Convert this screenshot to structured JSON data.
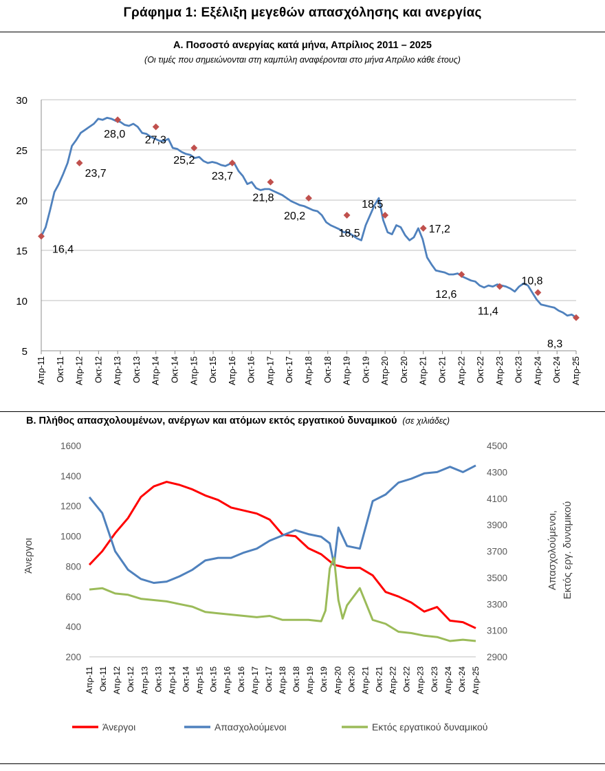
{
  "page": {
    "title": "Γράφημα 1: Εξέλιξη μεγεθών απασχόλησης και ανεργίας"
  },
  "chart_data": [
    {
      "id": "A",
      "type": "line",
      "title": "Α. Ποσοστό ανεργίας κατά μήνα, Απρίλιος 2011 – 2025",
      "subtitle": "(Οι τιμές που σημειώνονται στη καμπύλη αναφέρονται στο μήνα Απρίλιο κάθε έτους)",
      "xlabel": "",
      "ylabel": "",
      "ylim": [
        5,
        30
      ],
      "yticks": [
        5,
        10,
        15,
        20,
        25,
        30
      ],
      "grid": true,
      "x_tick_labels": [
        "Απρ-11",
        "Οκτ-11",
        "Απρ-12",
        "Οκτ-12",
        "Απρ-13",
        "Οκτ-13",
        "Απρ-14",
        "Οκτ-14",
        "Απρ-15",
        "Οκτ-15",
        "Απρ-16",
        "Οκτ-16",
        "Απρ-17",
        "Οκτ-17",
        "Απρ-18",
        "Οκτ-18",
        "Απρ-19",
        "Οκτ-19",
        "Απρ-20",
        "Οκτ-20",
        "Απρ-21",
        "Οκτ-21",
        "Απρ-22",
        "Οκτ-22",
        "Απρ-23",
        "Οκτ-23",
        "Απρ-24",
        "Οκτ-24",
        "Απρ-25"
      ],
      "series": [
        {
          "name": "Ποσοστό ανεργίας",
          "color": "#4f81bd",
          "points": [
            [
              0,
              16.4
            ],
            [
              0.5,
              17.3
            ],
            [
              1,
              19.0
            ],
            [
              1.5,
              20.8
            ],
            [
              2,
              21.6
            ],
            [
              2.5,
              22.6
            ],
            [
              3,
              23.7
            ],
            [
              3.5,
              25.4
            ],
            [
              4,
              26.0
            ],
            [
              4.5,
              26.7
            ],
            [
              5,
              27.0
            ],
            [
              5.5,
              27.3
            ],
            [
              6,
              27.6
            ],
            [
              6.5,
              28.1
            ],
            [
              7,
              28.0
            ],
            [
              7.5,
              28.2
            ],
            [
              8,
              28.1
            ],
            [
              8.5,
              27.9
            ],
            [
              9,
              27.8
            ],
            [
              9.5,
              27.5
            ],
            [
              10,
              27.4
            ],
            [
              10.5,
              27.6
            ],
            [
              11,
              27.3
            ],
            [
              11.5,
              26.7
            ],
            [
              12,
              26.6
            ],
            [
              12.5,
              26.3
            ],
            [
              13,
              26.1
            ],
            [
              13.5,
              25.9
            ],
            [
              14,
              25.9
            ],
            [
              14.5,
              26.1
            ],
            [
              15,
              25.2
            ],
            [
              15.5,
              25.1
            ],
            [
              16,
              24.8
            ],
            [
              16.5,
              24.6
            ],
            [
              17,
              24.5
            ],
            [
              17.5,
              24.2
            ],
            [
              18,
              24.3
            ],
            [
              18.5,
              23.9
            ],
            [
              19,
              23.7
            ],
            [
              19.5,
              23.8
            ],
            [
              20,
              23.7
            ],
            [
              20.5,
              23.5
            ],
            [
              21,
              23.4
            ],
            [
              21.5,
              23.6
            ],
            [
              22,
              23.7
            ],
            [
              22.5,
              22.9
            ],
            [
              23,
              22.4
            ],
            [
              23.5,
              21.6
            ],
            [
              24,
              21.8
            ],
            [
              24.5,
              21.2
            ],
            [
              25,
              21.0
            ],
            [
              25.5,
              21.1
            ],
            [
              26,
              21.1
            ],
            [
              26.5,
              20.9
            ],
            [
              27,
              20.7
            ],
            [
              27.5,
              20.5
            ],
            [
              28,
              20.2
            ],
            [
              28.5,
              19.9
            ],
            [
              29,
              19.7
            ],
            [
              29.5,
              19.5
            ],
            [
              30,
              19.4
            ],
            [
              30.5,
              19.2
            ],
            [
              31,
              19.0
            ],
            [
              31.5,
              18.9
            ],
            [
              32,
              18.5
            ],
            [
              32.5,
              17.8
            ],
            [
              33,
              17.5
            ],
            [
              33.5,
              17.3
            ],
            [
              34,
              17.1
            ],
            [
              34.5,
              16.8
            ],
            [
              35,
              16.8
            ],
            [
              35.5,
              16.5
            ],
            [
              36,
              16.2
            ],
            [
              36.5,
              16.0
            ],
            [
              37,
              17.5
            ],
            [
              37.5,
              18.5
            ],
            [
              38,
              19.5
            ],
            [
              38.5,
              20.2
            ],
            [
              39,
              18.0
            ],
            [
              39.5,
              16.8
            ],
            [
              40,
              16.6
            ],
            [
              40.5,
              17.5
            ],
            [
              41,
              17.3
            ],
            [
              41.5,
              16.5
            ],
            [
              42,
              16.0
            ],
            [
              42.5,
              16.3
            ],
            [
              43,
              17.2
            ],
            [
              43.5,
              16.1
            ],
            [
              44,
              14.3
            ],
            [
              44.5,
              13.6
            ],
            [
              45,
              13.0
            ],
            [
              45.5,
              12.9
            ],
            [
              46,
              12.8
            ],
            [
              46.5,
              12.6
            ],
            [
              47,
              12.6
            ],
            [
              47.5,
              12.7
            ],
            [
              48,
              12.4
            ],
            [
              48.5,
              12.2
            ],
            [
              49,
              12.0
            ],
            [
              49.5,
              11.9
            ],
            [
              50,
              11.5
            ],
            [
              50.5,
              11.3
            ],
            [
              51,
              11.5
            ],
            [
              51.5,
              11.4
            ],
            [
              52,
              11.6
            ],
            [
              52.5,
              11.5
            ],
            [
              53,
              11.4
            ],
            [
              53.5,
              11.2
            ],
            [
              54,
              10.9
            ],
            [
              54.5,
              11.4
            ],
            [
              55,
              11.7
            ],
            [
              55.5,
              11.5
            ],
            [
              56,
              10.8
            ],
            [
              56.5,
              10.1
            ],
            [
              57,
              9.6
            ],
            [
              57.5,
              9.5
            ],
            [
              58,
              9.4
            ],
            [
              58.5,
              9.3
            ],
            [
              59,
              9.0
            ],
            [
              59.5,
              8.8
            ],
            [
              60,
              8.5
            ],
            [
              60.5,
              8.6
            ],
            [
              61,
              8.3
            ]
          ]
        }
      ],
      "markers": {
        "color": "#c0504d",
        "points": [
          [
            0,
            16.4
          ],
          [
            6,
            23.7
          ],
          [
            12,
            28.0
          ],
          [
            18,
            27.3
          ],
          [
            24,
            25.2
          ],
          [
            30,
            23.7
          ],
          [
            36,
            21.8
          ],
          [
            42,
            20.2
          ],
          [
            48,
            18.5
          ],
          [
            54,
            18.5
          ],
          [
            60,
            17.2
          ],
          [
            66,
            12.6
          ],
          [
            72,
            11.4
          ],
          [
            78,
            10.8
          ],
          [
            84,
            8.3
          ]
        ]
      },
      "data_labels": [
        "16,4",
        "23,7",
        "28,0",
        "27,3",
        "25,2",
        "23,7",
        "21,8",
        "20,2",
        "18,5",
        "18,5",
        "17,2",
        "12,6",
        "11,4",
        "10,8",
        "8,3"
      ]
    },
    {
      "id": "B",
      "type": "line",
      "title": "Β. Πλήθος απασχολουμένων, ανέργων και ατόμων εκτός εργατικού δυναμικού",
      "unit_note": "(σε χιλιάδες)",
      "ylabel_left": "Άνεργοι",
      "ylabel_right_line1": "Απασχολούμενοι,",
      "ylabel_right_line2": "Εκτός εργ. δυναμικού",
      "ylim_left": [
        200,
        1600
      ],
      "yticks_left": [
        200,
        400,
        600,
        800,
        1000,
        1200,
        1400,
        1600
      ],
      "ylim_right": [
        2900,
        4500
      ],
      "yticks_right": [
        2900,
        3100,
        3300,
        3500,
        3700,
        3900,
        4100,
        4300,
        4500
      ],
      "grid": false,
      "x_tick_labels": [
        "Απρ-11",
        "Οκτ-11",
        "Απρ-12",
        "Οκτ-12",
        "Απρ-13",
        "Οκτ-13",
        "Απρ-14",
        "Οκτ-14",
        "Απρ-15",
        "Οκτ-15",
        "Απρ-16",
        "Οκτ-16",
        "Απρ-17",
        "Οκτ-17",
        "Απρ-18",
        "Οκτ-18",
        "Απρ-19",
        "Οκτ-19",
        "Απρ-20",
        "Οκτ-20",
        "Απρ-21",
        "Οκτ-21",
        "Απρ-22",
        "Οκτ-22",
        "Απρ-23",
        "Οκτ-23",
        "Απρ-24",
        "Οκτ-24",
        "Απρ-25"
      ],
      "series": [
        {
          "name": "Άνεργοι",
          "axis": "left",
          "color": "#ff0000",
          "points": [
            [
              0,
              810
            ],
            [
              3,
              900
            ],
            [
              6,
              1020
            ],
            [
              9,
              1120
            ],
            [
              12,
              1260
            ],
            [
              15,
              1330
            ],
            [
              18,
              1360
            ],
            [
              21,
              1340
            ],
            [
              24,
              1310
            ],
            [
              27,
              1270
            ],
            [
              30,
              1240
            ],
            [
              33,
              1190
            ],
            [
              36,
              1170
            ],
            [
              39,
              1150
            ],
            [
              42,
              1110
            ],
            [
              45,
              1010
            ],
            [
              48,
              1000
            ],
            [
              51,
              920
            ],
            [
              54,
              880
            ],
            [
              57,
              810
            ],
            [
              60,
              790
            ],
            [
              63,
              790
            ],
            [
              66,
              740
            ],
            [
              69,
              630
            ],
            [
              72,
              600
            ],
            [
              75,
              560
            ],
            [
              78,
              500
            ],
            [
              81,
              530
            ],
            [
              84,
              440
            ],
            [
              87,
              430
            ],
            [
              90,
              390
            ]
          ]
        },
        {
          "name": "Απασχολούμενοι",
          "axis": "right",
          "color": "#4f81bd",
          "points": [
            [
              0,
              4110
            ],
            [
              3,
              3990
            ],
            [
              6,
              3700
            ],
            [
              9,
              3560
            ],
            [
              12,
              3490
            ],
            [
              15,
              3460
            ],
            [
              18,
              3470
            ],
            [
              21,
              3510
            ],
            [
              24,
              3560
            ],
            [
              27,
              3630
            ],
            [
              30,
              3650
            ],
            [
              33,
              3650
            ],
            [
              36,
              3690
            ],
            [
              39,
              3720
            ],
            [
              42,
              3780
            ],
            [
              45,
              3820
            ],
            [
              48,
              3860
            ],
            [
              51,
              3830
            ],
            [
              54,
              3810
            ],
            [
              56,
              3760
            ],
            [
              57,
              3600
            ],
            [
              58,
              3880
            ],
            [
              60,
              3740
            ],
            [
              63,
              3720
            ],
            [
              66,
              4080
            ],
            [
              69,
              4130
            ],
            [
              72,
              4220
            ],
            [
              75,
              4250
            ],
            [
              78,
              4290
            ],
            [
              81,
              4300
            ],
            [
              84,
              4340
            ],
            [
              87,
              4300
            ],
            [
              90,
              4350
            ]
          ]
        },
        {
          "name": "Εκτός εργατικού δυναμικού",
          "axis": "right",
          "color": "#9bbb59",
          "points": [
            [
              0,
              3410
            ],
            [
              3,
              3420
            ],
            [
              6,
              3380
            ],
            [
              9,
              3370
            ],
            [
              12,
              3340
            ],
            [
              15,
              3330
            ],
            [
              18,
              3320
            ],
            [
              21,
              3300
            ],
            [
              24,
              3280
            ],
            [
              27,
              3240
            ],
            [
              30,
              3230
            ],
            [
              33,
              3220
            ],
            [
              36,
              3210
            ],
            [
              39,
              3200
            ],
            [
              42,
              3210
            ],
            [
              45,
              3180
            ],
            [
              48,
              3180
            ],
            [
              51,
              3180
            ],
            [
              54,
              3170
            ],
            [
              55,
              3250
            ],
            [
              56,
              3570
            ],
            [
              57,
              3650
            ],
            [
              58,
              3330
            ],
            [
              59,
              3190
            ],
            [
              60,
              3290
            ],
            [
              63,
              3420
            ],
            [
              66,
              3180
            ],
            [
              69,
              3150
            ],
            [
              72,
              3090
            ],
            [
              75,
              3080
            ],
            [
              78,
              3060
            ],
            [
              81,
              3050
            ],
            [
              84,
              3020
            ],
            [
              87,
              3030
            ],
            [
              90,
              3020
            ]
          ]
        }
      ]
    }
  ]
}
